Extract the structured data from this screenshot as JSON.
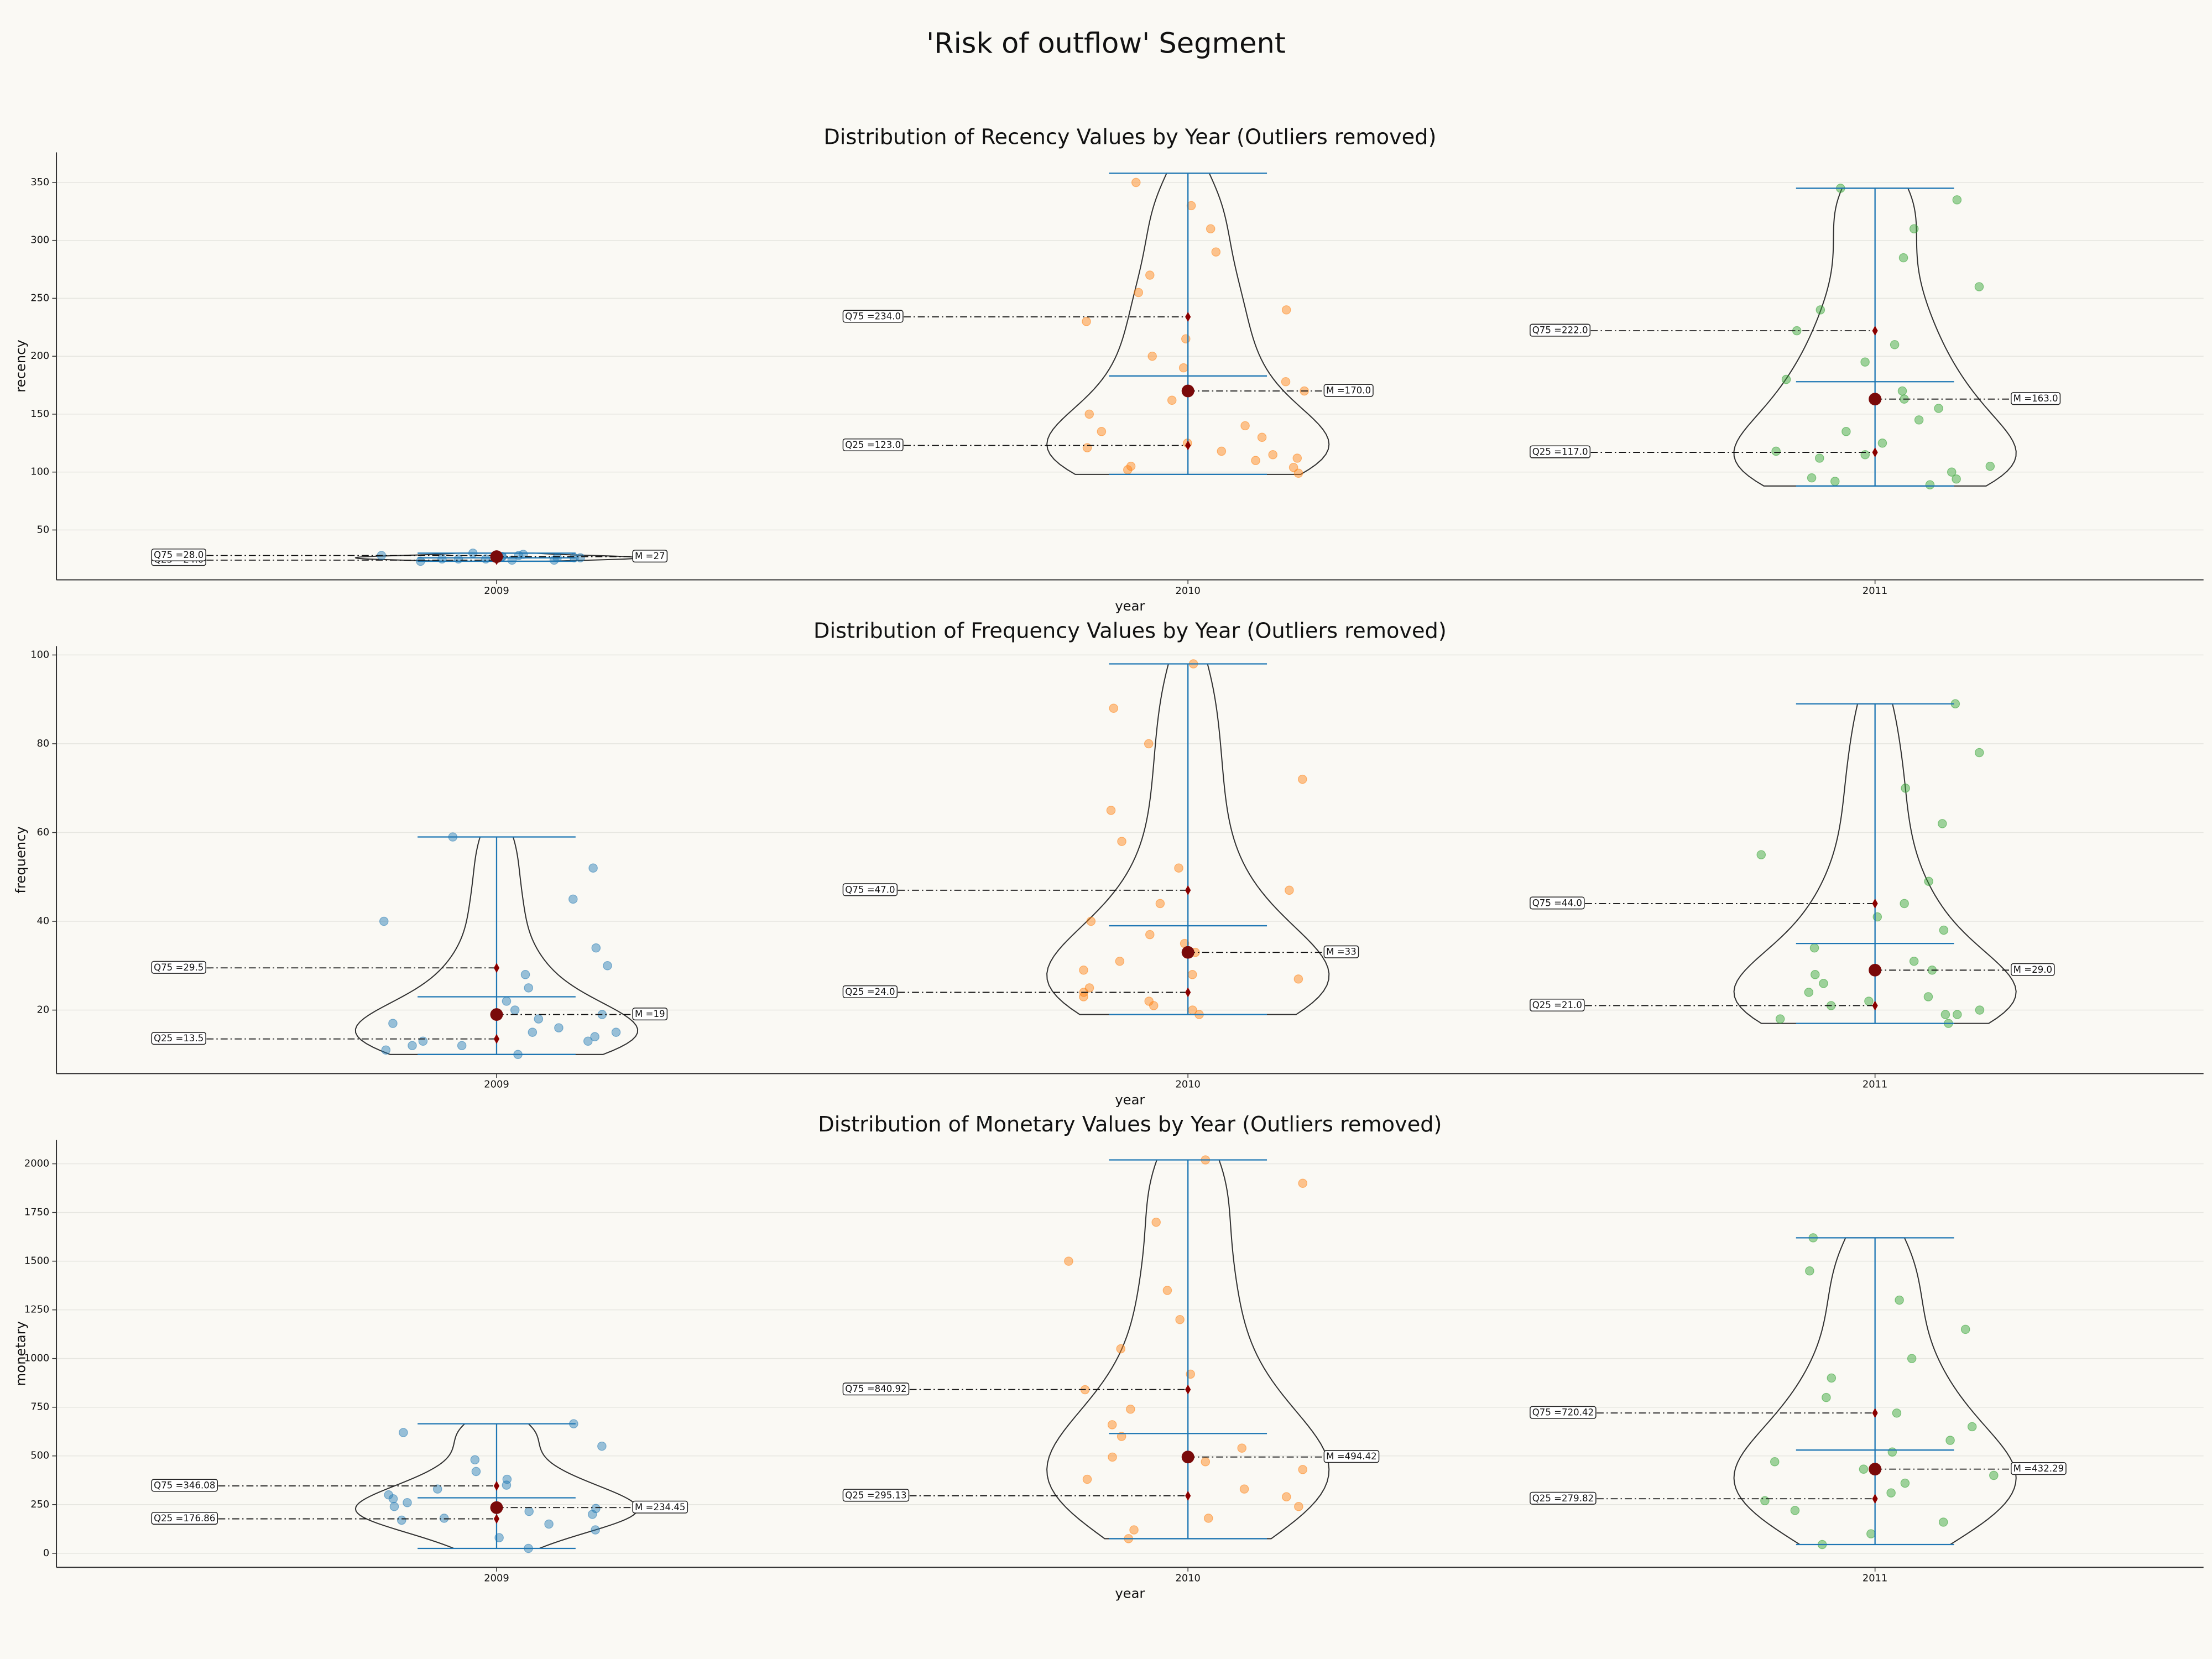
{
  "suptitle": "'Risk of outflow' Segment",
  "chart_data": [
    {
      "type": "violin",
      "title": "Distribution of Recency Values by Year (Outliers removed)",
      "x_label": "year",
      "y_label": "recency",
      "categories": [
        "2009",
        "2010",
        "2011"
      ],
      "ylim": [
        7,
        376
      ],
      "yticks": [
        50,
        100,
        150,
        200,
        250,
        300,
        350
      ],
      "grid": true,
      "groups": [
        {
          "color": "#1f77b4",
          "min": 23,
          "max": 30,
          "mean": 26,
          "q25": 24,
          "q25_label": "Q25 =24.0",
          "median": 27,
          "median_label": "M =27",
          "q75": 28,
          "q75_label": "Q75 =28.0",
          "points": [
            23,
            24,
            24,
            25,
            25,
            26,
            26,
            27,
            27,
            27,
            28,
            28,
            29,
            30,
            26,
            25
          ]
        },
        {
          "color": "#ff7f0e",
          "min": 98,
          "max": 358,
          "mean": 183,
          "q25": 123,
          "q25_label": "Q25 =123.0",
          "median": 170,
          "median_label": "M =170.0",
          "q75": 234,
          "q75_label": "Q75 =234.0",
          "points": [
            99,
            102,
            105,
            110,
            115,
            118,
            121,
            125,
            130,
            140,
            150,
            162,
            170,
            178,
            190,
            200,
            215,
            230,
            240,
            255,
            270,
            290,
            310,
            330,
            350,
            104,
            112,
            135
          ]
        },
        {
          "color": "#2ca02c",
          "min": 88,
          "max": 345,
          "mean": 178,
          "q25": 117,
          "q25_label": "Q25 =117.0",
          "median": 163,
          "median_label": "M =163.0",
          "q75": 222,
          "q75_label": "Q75 =222.0",
          "points": [
            89,
            92,
            95,
            100,
            105,
            112,
            118,
            125,
            135,
            145,
            155,
            163,
            170,
            180,
            195,
            210,
            222,
            240,
            260,
            285,
            310,
            335,
            345,
            94,
            115
          ]
        }
      ]
    },
    {
      "type": "violin",
      "title": "Distribution of Frequency Values by Year (Outliers removed)",
      "x_label": "year",
      "y_label": "frequency",
      "categories": [
        "2009",
        "2010",
        "2011"
      ],
      "ylim": [
        5.7,
        102
      ],
      "yticks": [
        20,
        40,
        60,
        80,
        100
      ],
      "grid": true,
      "groups": [
        {
          "color": "#1f77b4",
          "min": 10,
          "max": 59,
          "mean": 23,
          "q25": 13.5,
          "q25_label": "Q25 =13.5",
          "median": 19,
          "median_label": "M =19",
          "q75": 29.5,
          "q75_label": "Q75 =29.5",
          "points": [
            10,
            11,
            12,
            13,
            13,
            14,
            15,
            16,
            17,
            18,
            19,
            20,
            22,
            25,
            28,
            30,
            34,
            40,
            45,
            52,
            59,
            12,
            15
          ]
        },
        {
          "color": "#ff7f0e",
          "min": 19,
          "max": 98,
          "mean": 39,
          "q25": 24,
          "q25_label": "Q25 =24.0",
          "median": 33,
          "median_label": "M =33",
          "q75": 47,
          "q75_label": "Q75 =47.0",
          "points": [
            19,
            20,
            21,
            22,
            24,
            25,
            27,
            29,
            31,
            33,
            35,
            37,
            40,
            44,
            47,
            52,
            58,
            65,
            72,
            80,
            88,
            98,
            23,
            28
          ]
        },
        {
          "color": "#2ca02c",
          "min": 17,
          "max": 89,
          "mean": 35,
          "q25": 21,
          "q25_label": "Q25 =21.0",
          "median": 29,
          "median_label": "M =29.0",
          "q75": 44,
          "q75_label": "Q75 =44.0",
          "points": [
            17,
            18,
            19,
            20,
            21,
            22,
            24,
            26,
            28,
            29,
            31,
            34,
            38,
            41,
            44,
            49,
            55,
            62,
            70,
            78,
            89,
            19,
            23
          ]
        }
      ]
    },
    {
      "type": "violin",
      "title": "Distribution of Monetary Values by Year (Outliers removed)",
      "x_label": "year",
      "y_label": "monetary",
      "categories": [
        "2009",
        "2010",
        "2011"
      ],
      "ylim": [
        -72,
        2123
      ],
      "yticks": [
        0,
        250,
        500,
        750,
        1000,
        1250,
        1500,
        1750,
        2000
      ],
      "grid": true,
      "groups": [
        {
          "color": "#1f77b4",
          "min": 25,
          "max": 665,
          "mean": 285,
          "q25": 176.86,
          "q25_label": "Q25 =176.86",
          "median": 234.45,
          "median_label": "M =234.45",
          "q75": 346.08,
          "q75_label": "Q75 =346.08",
          "points": [
            25,
            80,
            120,
            150,
            170,
            180,
            200,
            215,
            230,
            240,
            260,
            280,
            300,
            330,
            350,
            380,
            420,
            480,
            550,
            620,
            665
          ]
        },
        {
          "color": "#ff7f0e",
          "min": 75,
          "max": 2020,
          "mean": 615,
          "q25": 295.13,
          "q25_label": "Q25 =295.13",
          "median": 494.42,
          "median_label": "M =494.42",
          "q75": 840.92,
          "q75_label": "Q75 =840.92",
          "points": [
            75,
            120,
            180,
            240,
            290,
            330,
            380,
            430,
            470,
            494,
            540,
            600,
            660,
            740,
            840,
            920,
            1050,
            1200,
            1350,
            1500,
            1700,
            1900,
            2020
          ]
        },
        {
          "color": "#2ca02c",
          "min": 45,
          "max": 1620,
          "mean": 530,
          "q25": 279.82,
          "q25_label": "Q25 =279.82",
          "median": 432.29,
          "median_label": "M =432.29",
          "q75": 720.42,
          "q75_label": "Q75 =720.42",
          "points": [
            45,
            100,
            160,
            220,
            270,
            310,
            360,
            400,
            432,
            470,
            520,
            580,
            650,
            720,
            800,
            900,
            1000,
            1150,
            1300,
            1450,
            1620
          ]
        }
      ]
    }
  ]
}
